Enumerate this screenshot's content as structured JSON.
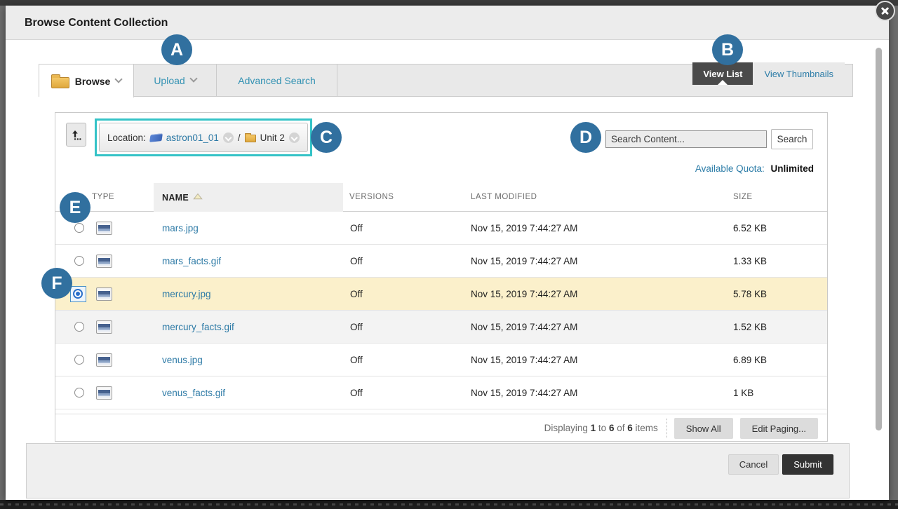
{
  "window": {
    "title": "Browse Content Collection"
  },
  "tabs": {
    "browse": "Browse",
    "upload": "Upload",
    "advanced_search": "Advanced Search"
  },
  "view_toggle": {
    "list": "View List",
    "thumbnails": "View Thumbnails"
  },
  "location": {
    "label": "Location:",
    "course": "astron01_01",
    "separator": "/",
    "folder": "Unit 2"
  },
  "search": {
    "placeholder": "Search Content...",
    "button": "Search"
  },
  "quota": {
    "label": "Available Quota:",
    "value": "Unlimited"
  },
  "table": {
    "headers": {
      "type": "TYPE",
      "name": "NAME",
      "versions": "VERSIONS",
      "last_modified": "LAST MODIFIED",
      "size": "SIZE"
    },
    "sort": {
      "column": "name",
      "direction": "ascending"
    },
    "rows": [
      {
        "name": "mars.jpg",
        "versions": "Off",
        "last_modified": "Nov 15, 2019 7:44:27 AM",
        "size": "6.52 KB",
        "selected": false,
        "shade": "white"
      },
      {
        "name": "mars_facts.gif",
        "versions": "Off",
        "last_modified": "Nov 15, 2019 7:44:27 AM",
        "size": "1.33 KB",
        "selected": false,
        "shade": "white"
      },
      {
        "name": "mercury.jpg",
        "versions": "Off",
        "last_modified": "Nov 15, 2019 7:44:27 AM",
        "size": "5.78 KB",
        "selected": true,
        "shade": "yellow"
      },
      {
        "name": "mercury_facts.gif",
        "versions": "Off",
        "last_modified": "Nov 15, 2019 7:44:27 AM",
        "size": "1.52 KB",
        "selected": false,
        "shade": "gray"
      },
      {
        "name": "venus.jpg",
        "versions": "Off",
        "last_modified": "Nov 15, 2019 7:44:27 AM",
        "size": "6.89 KB",
        "selected": false,
        "shade": "white"
      },
      {
        "name": "venus_facts.gif",
        "versions": "Off",
        "last_modified": "Nov 15, 2019 7:44:27 AM",
        "size": "1 KB",
        "selected": false,
        "shade": "white"
      }
    ]
  },
  "paging": {
    "displaying": "Displaying",
    "from": "1",
    "to_word": "to",
    "to": "6",
    "of_word": "of",
    "total": "6",
    "items_word": "items",
    "show_all": "Show All",
    "edit_paging": "Edit Paging..."
  },
  "actions": {
    "cancel": "Cancel",
    "submit": "Submit"
  },
  "badges": [
    {
      "letter": "A"
    },
    {
      "letter": "B"
    },
    {
      "letter": "C"
    },
    {
      "letter": "D"
    },
    {
      "letter": "E"
    },
    {
      "letter": "F"
    }
  ],
  "colors": {
    "badge_blue": "#31709f",
    "highlight_teal": "#35c3c7",
    "selected_row_yellow": "#fbf0cb",
    "link_blue": "#2d7aa6",
    "tab_link_teal": "#3392b3",
    "dark_button": "#4a4a4a",
    "submit_button": "#333333"
  }
}
